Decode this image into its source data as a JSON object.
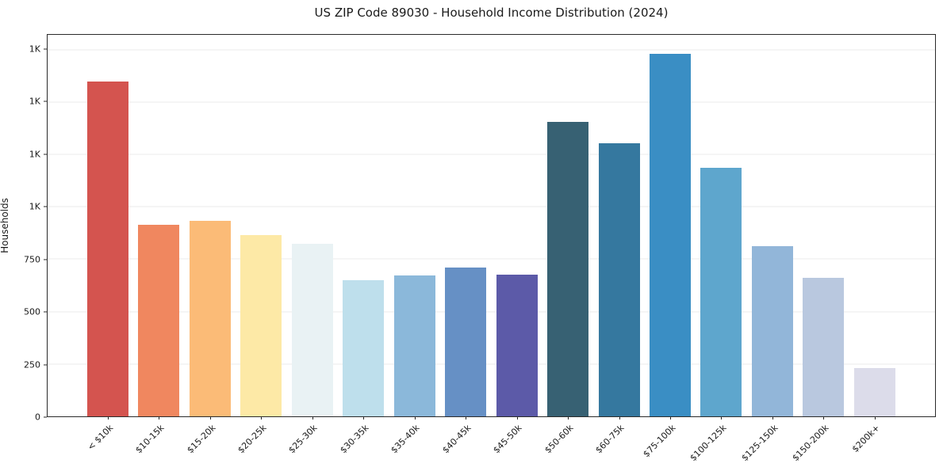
{
  "title": "US ZIP Code 89030 - Household Income Distribution (2024)",
  "chart_data": {
    "type": "bar",
    "title": "US ZIP Code 89030 - Household Income Distribution (2024)",
    "xlabel": "",
    "ylabel": "Households",
    "categories": [
      "< $10k",
      "$10-15k",
      "$15-20k",
      "$20-25k",
      "$25-30k",
      "$30-35k",
      "$35-40k",
      "$40-45k",
      "$45-50k",
      "$50-60k",
      "$60-75k",
      "$75-100k",
      "$100-125k",
      "$125-150k",
      "$150-200k",
      "$200k+"
    ],
    "values": [
      1598,
      912,
      931,
      866,
      824,
      650,
      672,
      710,
      677,
      1405,
      1302,
      1731,
      1184,
      811,
      659,
      232
    ],
    "bar_colors": [
      "#d4544f",
      "#f0875f",
      "#fbbb77",
      "#fde9a6",
      "#e9f2f4",
      "#bedfec",
      "#8bb8da",
      "#6690c5",
      "#5c5aa8",
      "#376173",
      "#35789f",
      "#3a8ec4",
      "#5ea6cd",
      "#92b6d9",
      "#b9c8df",
      "#dcdcea"
    ],
    "ylim": [
      0,
      1820
    ],
    "yticks": [
      {
        "value": 0,
        "label": "0"
      },
      {
        "value": 250,
        "label": "250"
      },
      {
        "value": 500,
        "label": "500"
      },
      {
        "value": 750,
        "label": "750"
      },
      {
        "value": 1000,
        "label": "1K"
      },
      {
        "value": 1250,
        "label": "1K"
      },
      {
        "value": 1500,
        "label": "1K"
      },
      {
        "value": 1750,
        "label": "1K"
      }
    ],
    "grid": "horizontal",
    "legend": "none"
  },
  "colors": {
    "background": "#ffffff",
    "gridline": "#ebebeb",
    "spine": "#2a2a2a",
    "text": "#1a1a1a"
  }
}
